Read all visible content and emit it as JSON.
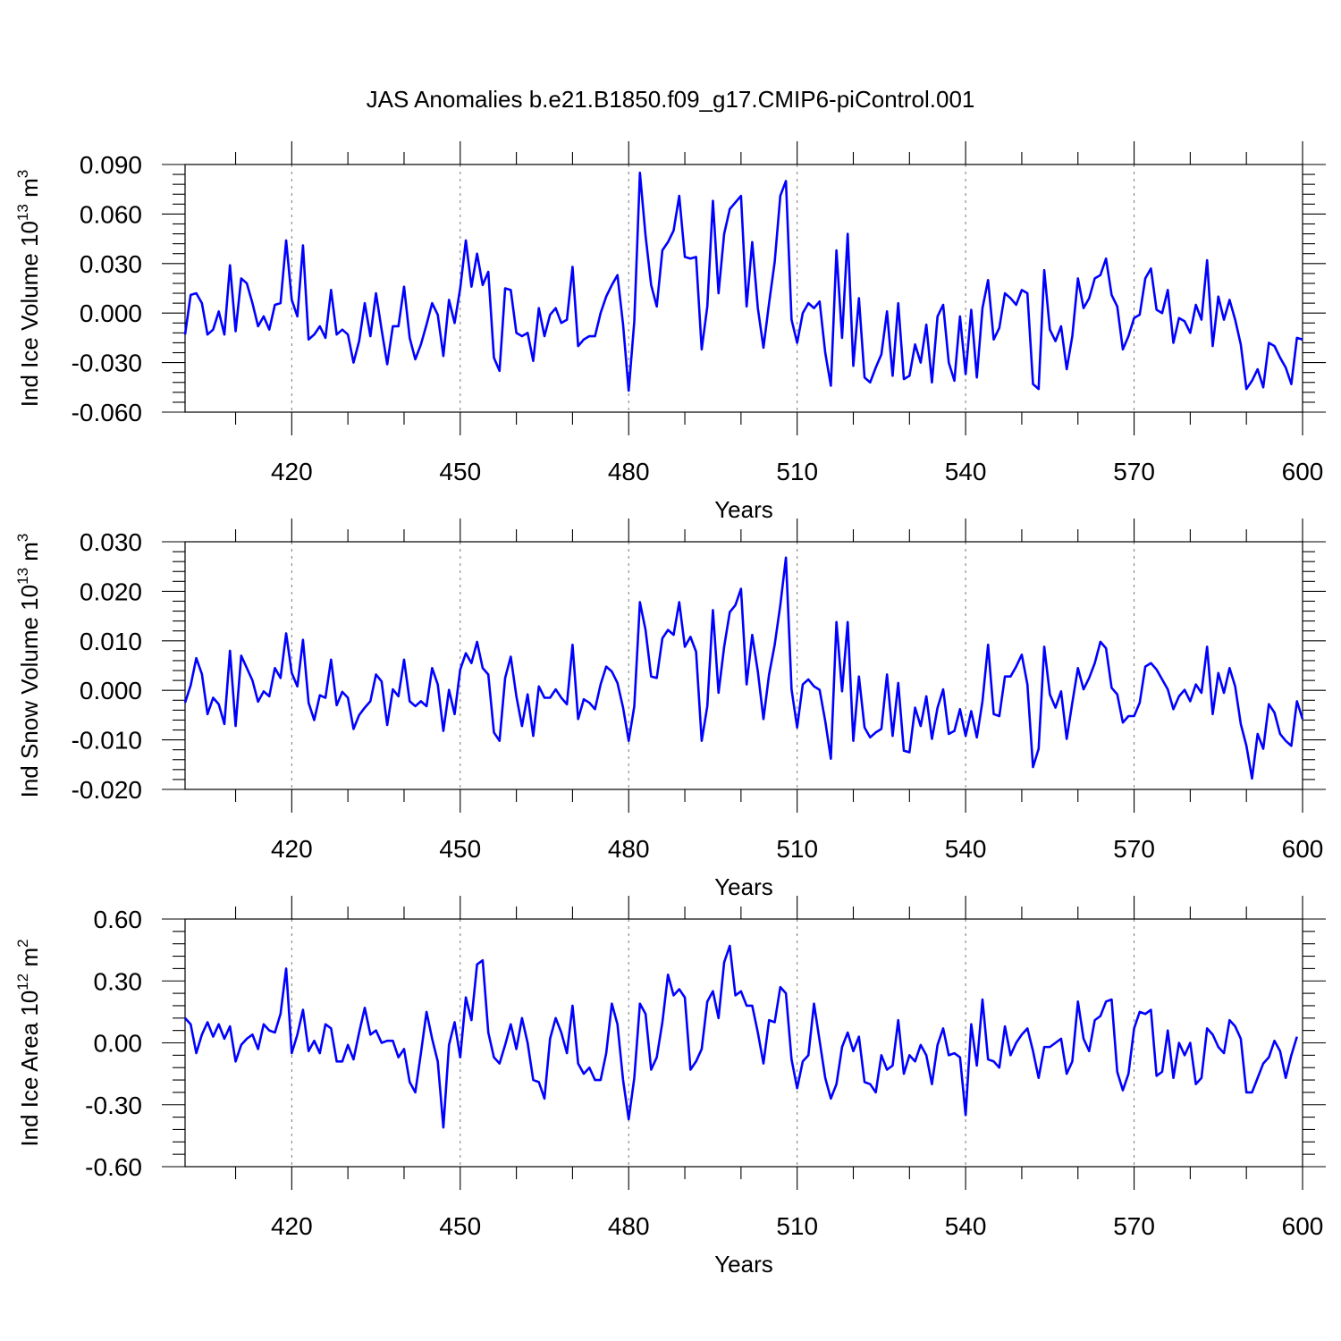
{
  "title": "JAS Anomalies b.e21.B1850.f09_g17.CMIP6-piControl.001",
  "colors": {
    "line": "#0000ff",
    "grid": "#777777"
  },
  "chart_data": [
    {
      "type": "line",
      "xlabel": "Years",
      "ylabel_main": "Ind Ice Volume 10",
      "ylabel_exp": "13",
      "ylabel_unit": " m",
      "ylabel_unit_exp": "3",
      "xlim": [
        401,
        600
      ],
      "ylim": [
        -0.06,
        0.09
      ],
      "grid": "dashed vertical at major x ticks",
      "x_start": 401,
      "x_ticks": [
        420,
        450,
        480,
        510,
        540,
        570,
        600
      ],
      "x_tick_labels": [
        "420",
        "450",
        "480",
        "510",
        "540",
        "570",
        "600"
      ],
      "y_ticks": [
        -0.06,
        -0.03,
        0.0,
        0.03,
        0.06,
        0.09
      ],
      "y_tick_labels": [
        "-0.060",
        "-0.030",
        "0.000",
        "0.030",
        "0.060",
        "0.090"
      ],
      "series": [
        {
          "values": [
            -0.013,
            0.011,
            0.012,
            0.006,
            -0.013,
            -0.01,
            0.001,
            -0.013,
            0.029,
            -0.011,
            0.021,
            0.018,
            0.006,
            -0.008,
            -0.002,
            -0.01,
            0.005,
            0.006,
            0.044,
            0.008,
            -0.002,
            0.041,
            -0.016,
            -0.013,
            -0.008,
            -0.015,
            0.014,
            -0.013,
            -0.01,
            -0.013,
            -0.03,
            -0.017,
            0.006,
            -0.014,
            0.012,
            -0.01,
            -0.031,
            -0.008,
            -0.008,
            0.016,
            -0.015,
            -0.028,
            -0.019,
            -0.007,
            0.006,
            -0.001,
            -0.026,
            0.008,
            -0.006,
            0.015,
            0.044,
            0.016,
            0.036,
            0.017,
            0.025,
            -0.027,
            -0.035,
            0.015,
            0.014,
            -0.012,
            -0.014,
            -0.012,
            -0.029,
            0.003,
            -0.014,
            -0.001,
            0.003,
            -0.006,
            -0.004,
            0.028,
            -0.02,
            -0.016,
            -0.014,
            -0.014,
            0.0,
            0.01,
            0.017,
            0.023,
            -0.007,
            -0.047,
            -0.005,
            0.085,
            0.047,
            0.017,
            0.004,
            0.038,
            0.043,
            0.05,
            0.071,
            0.034,
            0.033,
            0.034,
            -0.022,
            0.004,
            0.068,
            0.012,
            0.048,
            0.063,
            0.067,
            0.071,
            0.004,
            0.043,
            0.003,
            -0.021,
            0.006,
            0.031,
            0.071,
            0.08,
            -0.004,
            -0.018,
            0.0,
            0.006,
            0.003,
            0.007,
            -0.024,
            -0.044,
            0.038,
            -0.015,
            0.048,
            -0.032,
            0.009,
            -0.039,
            -0.042,
            -0.033,
            -0.025,
            0.001,
            -0.038,
            0.006,
            -0.04,
            -0.038,
            -0.019,
            -0.03,
            -0.007,
            -0.042,
            -0.002,
            0.005,
            -0.03,
            -0.041,
            -0.002,
            -0.037,
            0.002,
            -0.039,
            0.003,
            0.02,
            -0.016,
            -0.009,
            0.012,
            0.009,
            0.005,
            0.014,
            0.012,
            -0.043,
            -0.046,
            0.026,
            -0.01,
            -0.017,
            -0.008,
            -0.034,
            -0.014,
            0.021,
            0.003,
            0.009,
            0.021,
            0.023,
            0.033,
            0.011,
            0.004,
            -0.022,
            -0.014,
            -0.003,
            -0.001,
            0.021,
            0.027,
            0.002,
            0.0,
            0.014,
            -0.018,
            -0.003,
            -0.005,
            -0.012,
            0.005,
            -0.004,
            0.032,
            -0.02,
            0.01,
            -0.004,
            0.008,
            -0.004,
            -0.019,
            -0.046,
            -0.041,
            -0.034,
            -0.045,
            -0.018,
            -0.02,
            -0.027,
            -0.033,
            -0.043,
            -0.015,
            -0.016
          ]
        }
      ]
    },
    {
      "type": "line",
      "xlabel": "Years",
      "ylabel_main": "Ind Snow Volume 10",
      "ylabel_exp": "13",
      "ylabel_unit": " m",
      "ylabel_unit_exp": "3",
      "xlim": [
        401,
        600
      ],
      "ylim": [
        -0.02,
        0.03
      ],
      "grid": "dashed vertical at major x ticks",
      "x_start": 401,
      "x_ticks": [
        420,
        450,
        480,
        510,
        540,
        570,
        600
      ],
      "x_tick_labels": [
        "420",
        "450",
        "480",
        "510",
        "540",
        "570",
        "600"
      ],
      "y_ticks": [
        -0.02,
        -0.01,
        0.0,
        0.01,
        0.02,
        0.03
      ],
      "y_tick_labels": [
        "-0.020",
        "-0.010",
        "0.000",
        "0.010",
        "0.020",
        "0.030"
      ],
      "series": [
        {
          "values": [
            -0.0025,
            0.001,
            0.0065,
            0.0033,
            -0.0048,
            -0.0015,
            -0.0028,
            -0.0068,
            0.008,
            -0.0072,
            0.007,
            0.0045,
            0.002,
            -0.0023,
            -0.0002,
            -0.0012,
            0.0045,
            0.0025,
            0.0115,
            0.0035,
            0.0008,
            0.0102,
            -0.0025,
            -0.006,
            -0.001,
            -0.0015,
            0.0062,
            -0.003,
            -0.0003,
            -0.0015,
            -0.0078,
            -0.005,
            -0.0035,
            -0.0022,
            0.0032,
            0.0018,
            -0.007,
            0.0002,
            -0.0012,
            0.0062,
            -0.0022,
            -0.0032,
            -0.0022,
            -0.0032,
            0.0045,
            0.0012,
            -0.0082,
            0.0001,
            -0.0048,
            0.0042,
            0.0075,
            0.0055,
            0.0098,
            0.0045,
            0.0032,
            -0.0085,
            -0.0102,
            0.0025,
            0.0068,
            -0.0012,
            -0.0072,
            -0.0008,
            -0.0092,
            0.0008,
            -0.0015,
            -0.0015,
            0.0002,
            -0.0015,
            -0.0028,
            0.0092,
            -0.0058,
            -0.0018,
            -0.0025,
            -0.0038,
            0.0012,
            0.0048,
            0.0038,
            0.0015,
            -0.0035,
            -0.0102,
            -0.0032,
            0.0178,
            0.0122,
            0.0028,
            0.0025,
            0.0105,
            0.0122,
            0.0112,
            0.0178,
            0.0088,
            0.0108,
            0.0078,
            -0.0102,
            -0.0032,
            0.0162,
            -0.0005,
            0.0088,
            0.0158,
            0.0172,
            0.0205,
            0.0012,
            0.0112,
            0.0038,
            -0.0058,
            0.0032,
            0.0092,
            0.0172,
            0.0268,
            0.0002,
            -0.0075,
            0.0012,
            0.0022,
            0.0008,
            0.0001,
            -0.0062,
            -0.0138,
            0.0138,
            -0.0002,
            0.0138,
            -0.0102,
            0.0028,
            -0.0075,
            -0.0095,
            -0.0085,
            -0.0078,
            0.0032,
            -0.0092,
            0.0015,
            -0.0122,
            -0.0125,
            -0.0035,
            -0.0072,
            -0.0012,
            -0.0098,
            -0.0035,
            0.0002,
            -0.0088,
            -0.0082,
            -0.0038,
            -0.0092,
            -0.0042,
            -0.0095,
            -0.0022,
            0.0092,
            -0.0048,
            -0.0052,
            0.0028,
            0.0028,
            0.0048,
            0.0072,
            0.0012,
            -0.0155,
            -0.0118,
            0.0088,
            -0.0008,
            -0.0035,
            -0.0002,
            -0.0098,
            -0.0025,
            0.0045,
            0.0002,
            0.0025,
            0.0055,
            0.0098,
            0.0085,
            0.0005,
            -0.0008,
            -0.0065,
            -0.0052,
            -0.0052,
            -0.0025,
            0.0048,
            0.0055,
            0.0042,
            0.0022,
            0.0002,
            -0.0038,
            -0.0012,
            0.0001,
            -0.0022,
            0.0012,
            -0.0005,
            0.0088,
            -0.0048,
            0.0035,
            -0.0005,
            0.0045,
            0.0008,
            -0.0068,
            -0.0112,
            -0.0178,
            -0.0088,
            -0.0118,
            -0.0028,
            -0.0045,
            -0.0088,
            -0.0102,
            -0.0112,
            -0.0022,
            -0.0058
          ]
        }
      ]
    },
    {
      "type": "line",
      "xlabel": "Years",
      "ylabel_main": "Ind Ice Area 10",
      "ylabel_exp": "12",
      "ylabel_unit": " m",
      "ylabel_unit_exp": "2",
      "xlim": [
        401,
        600
      ],
      "ylim": [
        -0.6,
        0.6
      ],
      "grid": "dashed vertical at major x ticks",
      "x_start": 401,
      "x_ticks": [
        420,
        450,
        480,
        510,
        540,
        570,
        600
      ],
      "x_tick_labels": [
        "420",
        "450",
        "480",
        "510",
        "540",
        "570",
        "600"
      ],
      "y_ticks": [
        -0.6,
        -0.3,
        0.0,
        0.3,
        0.6
      ],
      "y_tick_labels": [
        "-0.60",
        "-0.30",
        "0.00",
        "0.30",
        "0.60"
      ],
      "series": [
        {
          "values": [
            0.12,
            0.09,
            -0.05,
            0.04,
            0.1,
            0.03,
            0.09,
            0.02,
            0.08,
            -0.09,
            -0.01,
            0.02,
            0.04,
            -0.03,
            0.09,
            0.06,
            0.05,
            0.14,
            0.36,
            -0.05,
            0.04,
            0.16,
            -0.04,
            0.01,
            -0.05,
            0.09,
            0.07,
            -0.09,
            -0.09,
            -0.01,
            -0.08,
            0.05,
            0.17,
            0.04,
            0.06,
            0.0,
            0.01,
            0.01,
            -0.07,
            -0.03,
            -0.19,
            -0.24,
            -0.05,
            0.15,
            0.02,
            -0.09,
            -0.41,
            -0.01,
            0.1,
            -0.07,
            0.22,
            0.11,
            0.38,
            0.4,
            0.05,
            -0.07,
            -0.1,
            -0.01,
            0.09,
            -0.03,
            0.12,
            0.0,
            -0.18,
            -0.19,
            -0.27,
            0.02,
            0.12,
            0.05,
            -0.05,
            0.18,
            -0.1,
            -0.15,
            -0.12,
            -0.18,
            -0.18,
            -0.05,
            0.19,
            0.09,
            -0.18,
            -0.37,
            -0.17,
            0.19,
            0.14,
            -0.13,
            -0.07,
            0.1,
            0.33,
            0.23,
            0.26,
            0.22,
            -0.13,
            -0.09,
            -0.03,
            0.2,
            0.25,
            0.12,
            0.39,
            0.47,
            0.23,
            0.25,
            0.18,
            0.18,
            0.05,
            -0.1,
            0.11,
            0.1,
            0.27,
            0.24,
            -0.08,
            -0.22,
            -0.09,
            -0.06,
            0.19,
            0.01,
            -0.17,
            -0.27,
            -0.2,
            -0.02,
            0.05,
            -0.04,
            0.03,
            -0.19,
            -0.2,
            -0.24,
            -0.06,
            -0.13,
            -0.11,
            0.11,
            -0.15,
            -0.06,
            -0.09,
            -0.01,
            -0.06,
            -0.2,
            -0.01,
            0.07,
            -0.06,
            -0.05,
            -0.07,
            -0.35,
            0.09,
            -0.11,
            0.21,
            -0.08,
            -0.09,
            -0.12,
            0.08,
            -0.06,
            0.0,
            0.04,
            0.07,
            -0.04,
            -0.17,
            -0.02,
            -0.02,
            0.0,
            0.02,
            -0.15,
            -0.09,
            0.2,
            0.02,
            -0.04,
            0.11,
            0.13,
            0.2,
            0.21,
            -0.14,
            -0.23,
            -0.15,
            0.07,
            0.15,
            0.14,
            0.16,
            -0.16,
            -0.14,
            0.06,
            -0.17,
            0.0,
            -0.06,
            0.0,
            -0.2,
            -0.17,
            0.07,
            0.04,
            -0.02,
            -0.05,
            0.11,
            0.08,
            0.02,
            -0.24,
            -0.24,
            -0.17,
            -0.1,
            -0.07,
            0.01,
            -0.04,
            -0.17,
            -0.06,
            0.03
          ]
        }
      ]
    }
  ]
}
